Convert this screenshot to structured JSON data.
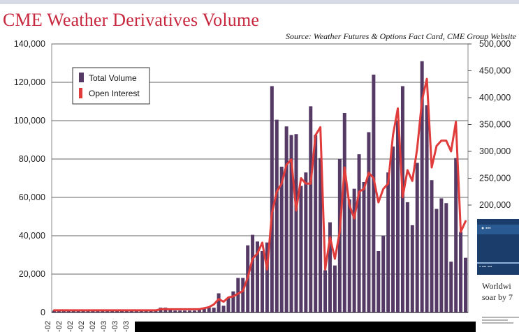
{
  "title": "CME Weather Derivatives Volume",
  "source": "Source: Weather Futures & Options Fact Card, CME Group Website",
  "side_text": [
    "Worldwi",
    "soar by 7"
  ],
  "colors": {
    "title": "#c8283e",
    "volume": "#553a66",
    "open_interest": "#e13c3c",
    "grid": "#666666",
    "panel": "#ffffff"
  },
  "chart_data": {
    "type": "bar",
    "title": "CME Weather Derivatives Volume",
    "left_axis": {
      "ylim": [
        0,
        140000
      ],
      "ticks": [
        0,
        20000,
        40000,
        60000,
        80000,
        100000,
        120000,
        140000
      ],
      "tick_labels": [
        "0",
        "20,000",
        "40,000",
        "60,000",
        "80,000",
        "100,000",
        "120,000",
        "140,000"
      ]
    },
    "right_axis": {
      "ylim": [
        0,
        500000
      ],
      "ticks": [
        200000,
        250000,
        300000,
        350000,
        400000,
        450000,
        500000
      ],
      "tick_labels": [
        "200,000",
        "250,000",
        "300,000",
        "350,000",
        "400,000",
        "450,000",
        "500,000"
      ]
    },
    "grid": true,
    "legend": {
      "position": "top-left",
      "entries": [
        "Total Volume",
        "Open Interest"
      ]
    },
    "x_tick_labels": [
      "-02",
      "-02",
      "-02",
      "-02",
      "-02",
      "-03",
      "-03",
      "-03"
    ],
    "series": [
      {
        "name": "Total Volume",
        "kind": "bar",
        "axis": "left",
        "values": [
          1000,
          1000,
          1000,
          1000,
          1000,
          1000,
          1000,
          1000,
          1000,
          1000,
          1000,
          1000,
          1000,
          1000,
          1000,
          1000,
          1000,
          1000,
          1000,
          1000,
          1000,
          1000,
          2500,
          2500,
          2000,
          1000,
          1000,
          1000,
          1000,
          1000,
          1500,
          2000,
          2500,
          2500,
          10000,
          3500,
          7500,
          11000,
          18000,
          18000,
          35000,
          40500,
          37000,
          32000,
          36500,
          118000,
          100500,
          76000,
          97000,
          92500,
          93000,
          66000,
          73000,
          107500,
          92500,
          80500,
          22000,
          47000,
          24500,
          80000,
          104000,
          59000,
          64500,
          82500,
          68000,
          94000,
          124000,
          32000,
          40000,
          73000,
          86500,
          100000,
          118000,
          57500,
          45500,
          78000,
          131000,
          108000,
          69000,
          54000,
          59500,
          57000,
          26500,
          80500,
          42000,
          28500
        ]
      },
      {
        "name": "Open Interest",
        "kind": "line",
        "axis": "right",
        "values": [
          4000,
          4000,
          4000,
          4000,
          4000,
          4000,
          4000,
          4000,
          4000,
          4000,
          4000,
          4000,
          4000,
          4000,
          4000,
          4000,
          4000,
          4000,
          4000,
          4000,
          4000,
          4000,
          6000,
          6000,
          6000,
          6000,
          6000,
          6000,
          6000,
          6000,
          6000,
          8000,
          10000,
          15000,
          25000,
          20000,
          28000,
          30000,
          35000,
          40000,
          65000,
          100000,
          110000,
          130000,
          80000,
          185000,
          225000,
          240000,
          275000,
          285000,
          190000,
          250000,
          240000,
          240000,
          330000,
          345000,
          80000,
          140000,
          100000,
          150000,
          270000,
          200000,
          175000,
          225000,
          230000,
          260000,
          250000,
          205000,
          230000,
          240000,
          330000,
          380000,
          215000,
          265000,
          245000,
          305000,
          395000,
          435000,
          270000,
          310000,
          320000,
          320000,
          300000,
          355000,
          150000,
          170000
        ]
      }
    ]
  }
}
